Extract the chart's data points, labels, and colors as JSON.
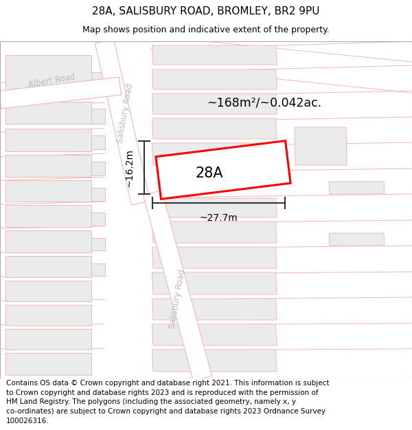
{
  "title": "28A, SALISBURY ROAD, BROMLEY, BR2 9PU",
  "subtitle": "Map shows position and indicative extent of the property.",
  "footer": "Contains OS data © Crown copyright and database right 2021. This information is subject\nto Crown copyright and database rights 2023 and is reproduced with the permission of\nHM Land Registry. The polygons (including the associated geometry, namely x, y\nco-ordinates) are subject to Crown copyright and database rights 2023 Ordnance Survey\n100026316.",
  "label_28A": "28A",
  "area_label": "~168m²/~0.042ac.",
  "dim_width": "~27.7m",
  "dim_height": "~16.2m",
  "road_label_upper": "Salisbury Road",
  "road_label_lower": "Salisbury Road",
  "road_label_albert": "Albert Road",
  "title_fontsize": 11,
  "subtitle_fontsize": 9,
  "footer_fontsize": 7.5,
  "map_bg": "#ffffff",
  "bldg_fill": "#ebebeb",
  "bldg_edge": "#f0b8b8",
  "road_line": "#f0b8b8",
  "highlight_color": "#ff0000",
  "label_color": "#cccccc",
  "dim_color": "#333333",
  "text_color": "#000000"
}
